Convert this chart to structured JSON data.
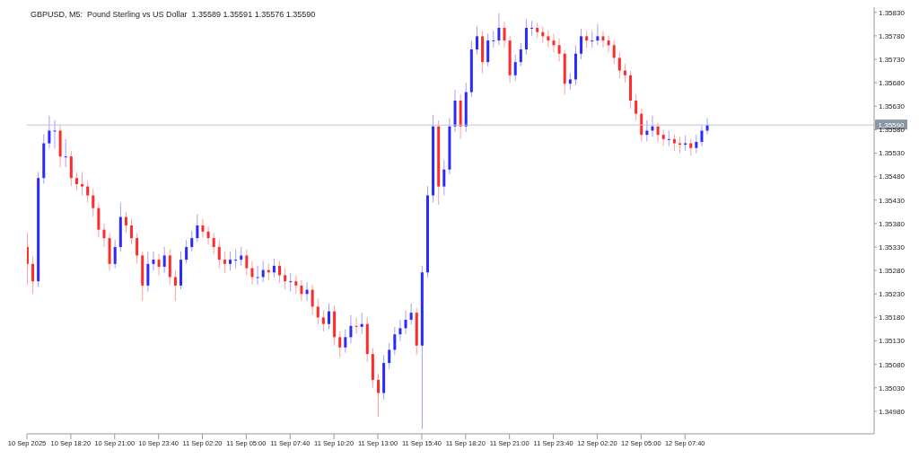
{
  "chart_data": {
    "type": "candlestick",
    "title": "GBPUSD, M5:  Pound Sterling vs US Dollar  1.35589 1.35591 1.35576 1.35590",
    "x": [
      "2025-09-10T15:40",
      "2025-09-10T16:00",
      "2025-09-10T16:20",
      "2025-09-10T16:40",
      "2025-09-10T17:00",
      "2025-09-10T17:20",
      "2025-09-10T17:40",
      "2025-09-10T18:00",
      "2025-09-10T18:20",
      "2025-09-10T18:40",
      "2025-09-10T19:00",
      "2025-09-10T19:20",
      "2025-09-10T19:40",
      "2025-09-10T20:00",
      "2025-09-10T20:20",
      "2025-09-10T20:40",
      "2025-09-10T21:00",
      "2025-09-10T21:20",
      "2025-09-10T21:40",
      "2025-09-10T22:00",
      "2025-09-10T22:20",
      "2025-09-10T22:40",
      "2025-09-10T23:00",
      "2025-09-10T23:20",
      "2025-09-10T23:40",
      "2025-09-11T00:00",
      "2025-09-11T00:20",
      "2025-09-11T00:40",
      "2025-09-11T01:00",
      "2025-09-11T01:20",
      "2025-09-11T01:40",
      "2025-09-11T02:00",
      "2025-09-11T02:20",
      "2025-09-11T02:40",
      "2025-09-11T03:00",
      "2025-09-11T03:20",
      "2025-09-11T03:40",
      "2025-09-11T04:00",
      "2025-09-11T04:20",
      "2025-09-11T04:40",
      "2025-09-11T05:00",
      "2025-09-11T05:20",
      "2025-09-11T05:40",
      "2025-09-11T06:00",
      "2025-09-11T06:20",
      "2025-09-11T06:40",
      "2025-09-11T07:00",
      "2025-09-11T07:20",
      "2025-09-11T07:40",
      "2025-09-11T08:00",
      "2025-09-11T08:20",
      "2025-09-11T08:40",
      "2025-09-11T09:00",
      "2025-09-11T09:20",
      "2025-09-11T09:40",
      "2025-09-11T10:00",
      "2025-09-11T10:20",
      "2025-09-11T10:40",
      "2025-09-11T11:00",
      "2025-09-11T11:20",
      "2025-09-11T11:40",
      "2025-09-11T12:00",
      "2025-09-11T12:20",
      "2025-09-11T12:40",
      "2025-09-11T13:00",
      "2025-09-11T13:20",
      "2025-09-11T13:40",
      "2025-09-11T14:00",
      "2025-09-11T14:20",
      "2025-09-11T14:40",
      "2025-09-11T15:00",
      "2025-09-11T15:20",
      "2025-09-11T15:40",
      "2025-09-11T16:00",
      "2025-09-11T16:20",
      "2025-09-11T16:40",
      "2025-09-11T17:00",
      "2025-09-11T17:20",
      "2025-09-11T17:40",
      "2025-09-11T18:00",
      "2025-09-11T18:20",
      "2025-09-11T18:40",
      "2025-09-11T19:00",
      "2025-09-11T19:20",
      "2025-09-11T19:40",
      "2025-09-11T20:00",
      "2025-09-11T20:20",
      "2025-09-11T20:40",
      "2025-09-11T21:00",
      "2025-09-11T21:20",
      "2025-09-11T21:40",
      "2025-09-11T22:00",
      "2025-09-11T22:20",
      "2025-09-11T22:40",
      "2025-09-11T23:00",
      "2025-09-11T23:20",
      "2025-09-11T23:40",
      "2025-09-12T00:00",
      "2025-09-12T00:20",
      "2025-09-12T00:40",
      "2025-09-12T01:00",
      "2025-09-12T01:20",
      "2025-09-12T01:40",
      "2025-09-12T02:00",
      "2025-09-12T02:20",
      "2025-09-12T02:40",
      "2025-09-12T03:00",
      "2025-09-12T03:20",
      "2025-09-12T03:40",
      "2025-09-12T04:00",
      "2025-09-12T04:20",
      "2025-09-12T04:40",
      "2025-09-12T05:00",
      "2025-09-12T05:20",
      "2025-09-12T05:40",
      "2025-09-12T06:00",
      "2025-09-12T06:20",
      "2025-09-12T06:40",
      "2025-09-12T07:00",
      "2025-09-12T07:20",
      "2025-09-12T07:40",
      "2025-09-12T08:00",
      "2025-09-12T08:20",
      "2025-09-12T08:40",
      "2025-09-12T09:00"
    ],
    "ohlc": [
      [
        1.3533,
        1.3536,
        1.3525,
        1.35294
      ],
      [
        1.35294,
        1.3531,
        1.3523,
        1.35257
      ],
      [
        1.35257,
        1.3549,
        1.35245,
        1.35477
      ],
      [
        1.35477,
        1.3557,
        1.35465,
        1.35551
      ],
      [
        1.35551,
        1.3561,
        1.3554,
        1.35578
      ],
      [
        1.35578,
        1.356,
        1.3554,
        1.35578
      ],
      [
        1.35578,
        1.3559,
        1.355,
        1.35523
      ],
      [
        1.35523,
        1.3556,
        1.355,
        1.35523
      ],
      [
        1.35523,
        1.35535,
        1.3546,
        1.35477
      ],
      [
        1.35477,
        1.3549,
        1.3545,
        1.35464
      ],
      [
        1.35464,
        1.3549,
        1.3544,
        1.35459
      ],
      [
        1.35459,
        1.3547,
        1.35425,
        1.3544
      ],
      [
        1.3544,
        1.35455,
        1.35395,
        1.35413
      ],
      [
        1.35413,
        1.35425,
        1.3535,
        1.35367
      ],
      [
        1.35367,
        1.3538,
        1.3533,
        1.35349
      ],
      [
        1.35349,
        1.3536,
        1.3528,
        1.35294
      ],
      [
        1.35294,
        1.35345,
        1.35285,
        1.3533
      ],
      [
        1.3533,
        1.35425,
        1.3532,
        1.35394
      ],
      [
        1.35394,
        1.35405,
        1.3536,
        1.35376
      ],
      [
        1.35376,
        1.3539,
        1.35335,
        1.35349
      ],
      [
        1.35349,
        1.3536,
        1.35295,
        1.35312
      ],
      [
        1.35312,
        1.3532,
        1.35215,
        1.35248
      ],
      [
        1.35248,
        1.3532,
        1.35235,
        1.35294
      ],
      [
        1.35294,
        1.3532,
        1.3528,
        1.35303
      ],
      [
        1.35303,
        1.35315,
        1.3527,
        1.35288
      ],
      [
        1.35288,
        1.3533,
        1.35275,
        1.35312
      ],
      [
        1.35312,
        1.35325,
        1.3525,
        1.35266
      ],
      [
        1.35266,
        1.3528,
        1.35215,
        1.35248
      ],
      [
        1.35248,
        1.3532,
        1.3524,
        1.35303
      ],
      [
        1.35303,
        1.35345,
        1.35295,
        1.3533
      ],
      [
        1.3533,
        1.35365,
        1.3532,
        1.35349
      ],
      [
        1.35349,
        1.354,
        1.3534,
        1.35376
      ],
      [
        1.35376,
        1.3539,
        1.3535,
        1.35363
      ],
      [
        1.35363,
        1.35375,
        1.35335,
        1.35349
      ],
      [
        1.35349,
        1.3536,
        1.35315,
        1.3533
      ],
      [
        1.3533,
        1.35345,
        1.35285,
        1.35303
      ],
      [
        1.35303,
        1.3532,
        1.35275,
        1.35294
      ],
      [
        1.35294,
        1.3532,
        1.3528,
        1.35303
      ],
      [
        1.35303,
        1.35325,
        1.35285,
        1.35303
      ],
      [
        1.35303,
        1.3533,
        1.3529,
        1.35312
      ],
      [
        1.35312,
        1.35325,
        1.3527,
        1.35285
      ],
      [
        1.35285,
        1.353,
        1.3525,
        1.35266
      ],
      [
        1.35266,
        1.3529,
        1.3525,
        1.35266
      ],
      [
        1.35266,
        1.353,
        1.35255,
        1.35281
      ],
      [
        1.35281,
        1.35295,
        1.3526,
        1.35276
      ],
      [
        1.35276,
        1.35305,
        1.35265,
        1.3529
      ],
      [
        1.3529,
        1.353,
        1.35255,
        1.3527
      ],
      [
        1.3527,
        1.35285,
        1.3524,
        1.35257
      ],
      [
        1.35257,
        1.35275,
        1.35235,
        1.35257
      ],
      [
        1.35257,
        1.3527,
        1.3523,
        1.35248
      ],
      [
        1.35248,
        1.3526,
        1.35215,
        1.3523
      ],
      [
        1.3523,
        1.35255,
        1.35215,
        1.35239
      ],
      [
        1.35239,
        1.3525,
        1.35185,
        1.35203
      ],
      [
        1.35203,
        1.3522,
        1.35165,
        1.3518
      ],
      [
        1.3518,
        1.35195,
        1.3515,
        1.35166
      ],
      [
        1.35166,
        1.3521,
        1.35155,
        1.35193
      ],
      [
        1.35193,
        1.35205,
        1.3512,
        1.35138
      ],
      [
        1.35138,
        1.3515,
        1.35095,
        1.35116
      ],
      [
        1.35116,
        1.35155,
        1.35105,
        1.35138
      ],
      [
        1.35138,
        1.35185,
        1.35125,
        1.35162
      ],
      [
        1.35162,
        1.3518,
        1.35145,
        1.3516
      ],
      [
        1.3516,
        1.3519,
        1.35145,
        1.35166
      ],
      [
        1.35166,
        1.3518,
        1.35085,
        1.35102
      ],
      [
        1.35102,
        1.35115,
        1.3503,
        1.35047
      ],
      [
        1.35047,
        1.3506,
        1.34968,
        1.35019
      ],
      [
        1.35019,
        1.351,
        1.35005,
        1.35083
      ],
      [
        1.35083,
        1.35125,
        1.3507,
        1.35111
      ],
      [
        1.35111,
        1.3516,
        1.351,
        1.35144
      ],
      [
        1.35144,
        1.35175,
        1.3513,
        1.35157
      ],
      [
        1.35157,
        1.35195,
        1.35145,
        1.35175
      ],
      [
        1.35175,
        1.3521,
        1.35165,
        1.3519
      ],
      [
        1.3519,
        1.352,
        1.351,
        1.3512
      ],
      [
        1.3512,
        1.3529,
        1.34942,
        1.35276
      ],
      [
        1.35276,
        1.3546,
        1.35265,
        1.3544
      ],
      [
        1.3544,
        1.35612,
        1.35425,
        1.35587
      ],
      [
        1.35587,
        1.356,
        1.3542,
        1.35459
      ],
      [
        1.35459,
        1.35515,
        1.3544,
        1.35495
      ],
      [
        1.35495,
        1.35605,
        1.35485,
        1.35587
      ],
      [
        1.35587,
        1.35665,
        1.35575,
        1.35642
      ],
      [
        1.35642,
        1.35655,
        1.3556,
        1.35587
      ],
      [
        1.35587,
        1.3568,
        1.35575,
        1.3566
      ],
      [
        1.3566,
        1.3577,
        1.3565,
        1.35751
      ],
      [
        1.35751,
        1.358,
        1.3574,
        1.35779
      ],
      [
        1.35779,
        1.3579,
        1.357,
        1.35724
      ],
      [
        1.35724,
        1.35785,
        1.35715,
        1.3577
      ],
      [
        1.3577,
        1.3579,
        1.35755,
        1.3577
      ],
      [
        1.3577,
        1.35828,
        1.3576,
        1.35797
      ],
      [
        1.35797,
        1.3581,
        1.35755,
        1.3577
      ],
      [
        1.3577,
        1.3578,
        1.3568,
        1.35696
      ],
      [
        1.35696,
        1.3574,
        1.35685,
        1.35724
      ],
      [
        1.35724,
        1.35765,
        1.35715,
        1.35751
      ],
      [
        1.35751,
        1.35815,
        1.3574,
        1.35797
      ],
      [
        1.35797,
        1.35812,
        1.3578,
        1.35797
      ],
      [
        1.35797,
        1.35808,
        1.35775,
        1.35788
      ],
      [
        1.35788,
        1.358,
        1.35765,
        1.35779
      ],
      [
        1.35779,
        1.35792,
        1.35755,
        1.3577
      ],
      [
        1.3577,
        1.35785,
        1.35745,
        1.3576
      ],
      [
        1.3576,
        1.35775,
        1.35725,
        1.35742
      ],
      [
        1.35742,
        1.3575,
        1.35655,
        1.35678
      ],
      [
        1.35678,
        1.357,
        1.35665,
        1.35687
      ],
      [
        1.35687,
        1.3576,
        1.35675,
        1.35742
      ],
      [
        1.35742,
        1.35795,
        1.3573,
        1.35779
      ],
      [
        1.35779,
        1.3579,
        1.35755,
        1.3577
      ],
      [
        1.3577,
        1.3579,
        1.35755,
        1.3577
      ],
      [
        1.3577,
        1.35805,
        1.3576,
        1.35779
      ],
      [
        1.35779,
        1.3579,
        1.35755,
        1.3577
      ],
      [
        1.3577,
        1.3578,
        1.35745,
        1.3576
      ],
      [
        1.3576,
        1.3577,
        1.3572,
        1.35733
      ],
      [
        1.35733,
        1.35745,
        1.3569,
        1.35706
      ],
      [
        1.35706,
        1.3572,
        1.3568,
        1.35696
      ],
      [
        1.35696,
        1.35705,
        1.35625,
        1.35642
      ],
      [
        1.35642,
        1.35655,
        1.356,
        1.35614
      ],
      [
        1.35614,
        1.35625,
        1.35555,
        1.35569
      ],
      [
        1.35569,
        1.356,
        1.35555,
        1.35578
      ],
      [
        1.35578,
        1.3561,
        1.35565,
        1.35587
      ],
      [
        1.35587,
        1.35595,
        1.35555,
        1.35569
      ],
      [
        1.35569,
        1.3558,
        1.35545,
        1.3556
      ],
      [
        1.3556,
        1.35578,
        1.35545,
        1.3556
      ],
      [
        1.3556,
        1.3557,
        1.35535,
        1.35551
      ],
      [
        1.35551,
        1.35565,
        1.3553,
        1.35548
      ],
      [
        1.35548,
        1.35568,
        1.35535,
        1.35551
      ],
      [
        1.35551,
        1.3556,
        1.35525,
        1.35541
      ],
      [
        1.35541,
        1.3557,
        1.3553,
        1.35554
      ],
      [
        1.35554,
        1.3559,
        1.35545,
        1.35578
      ],
      [
        1.35578,
        1.35605,
        1.3557,
        1.3559
      ]
    ],
    "colors": [
      "#ff2a2a",
      "#ff2a2a",
      "#2a2aff",
      "#2a2aff",
      "#2a2aff",
      "#2a2aff",
      "#ff2a2a",
      "#2a2aff",
      "#ff2a2a",
      "#ff2a2a",
      "#ff2a2a",
      "#ff2a2a",
      "#ff2a2a",
      "#ff2a2a",
      "#ff2a2a",
      "#ff2a2a",
      "#2a2aff",
      "#2a2aff",
      "#ff2a2a",
      "#ff2a2a",
      "#ff2a2a",
      "#ff2a2a",
      "#2a2aff",
      "#2a2aff",
      "#ff2a2a",
      "#2a2aff",
      "#ff2a2a",
      "#ff2a2a",
      "#2a2aff",
      "#2a2aff",
      "#2a2aff",
      "#2a2aff",
      "#ff2a2a",
      "#ff2a2a",
      "#ff2a2a",
      "#ff2a2a",
      "#ff2a2a",
      "#2a2aff",
      "#2a2aff",
      "#2a2aff",
      "#ff2a2a",
      "#ff2a2a",
      "#2a2aff",
      "#2a2aff",
      "#ff2a2a",
      "#2a2aff",
      "#ff2a2a",
      "#ff2a2a",
      "#2a2aff",
      "#ff2a2a",
      "#ff2a2a",
      "#2a2aff",
      "#ff2a2a",
      "#ff2a2a",
      "#ff2a2a",
      "#2a2aff",
      "#ff2a2a",
      "#ff2a2a",
      "#2a2aff",
      "#2a2aff",
      "#ff2a2a",
      "#2a2aff",
      "#ff2a2a",
      "#ff2a2a",
      "#ff2a2a",
      "#2a2aff",
      "#2a2aff",
      "#2a2aff",
      "#2a2aff",
      "#2a2aff",
      "#2a2aff",
      "#ff2a2a",
      "#2a2aff",
      "#2a2aff",
      "#2a2aff",
      "#ff2a2a",
      "#2a2aff",
      "#2a2aff",
      "#2a2aff",
      "#ff2a2a",
      "#2a2aff",
      "#2a2aff",
      "#2a2aff",
      "#ff2a2a",
      "#2a2aff",
      "#2a2aff",
      "#2a2aff",
      "#ff2a2a",
      "#ff2a2a",
      "#2a2aff",
      "#2a2aff",
      "#2a2aff",
      "#2a2aff",
      "#ff2a2a",
      "#ff2a2a",
      "#ff2a2a",
      "#ff2a2a",
      "#ff2a2a",
      "#ff2a2a",
      "#2a2aff",
      "#2a2aff",
      "#2a2aff",
      "#ff2a2a",
      "#2a2aff",
      "#2a2aff",
      "#ff2a2a",
      "#ff2a2a",
      "#ff2a2a",
      "#ff2a2a",
      "#ff2a2a",
      "#ff2a2a",
      "#ff2a2a",
      "#ff2a2a",
      "#2a2aff",
      "#2a2aff",
      "#ff2a2a",
      "#ff2a2a",
      "#2a2aff",
      "#ff2a2a",
      "#ff2a2a",
      "#2a2aff",
      "#ff2a2a",
      "#2a2aff",
      "#2a2aff",
      "#2a2aff"
    ],
    "xlim": [
      "2025-09-10T15:40",
      "2025-09-12T19:10"
    ],
    "xticks": [
      {
        "value": "2025-09-10T15:40",
        "label": "10 Sep 2025"
      },
      {
        "value": "2025-09-10T18:20",
        "label": "10 Sep 18:20"
      },
      {
        "value": "2025-09-10T21:00",
        "label": "10 Sep 21:00"
      },
      {
        "value": "2025-09-10T23:40",
        "label": "10 Sep 23:40"
      },
      {
        "value": "2025-09-11T02:20",
        "label": "11 Sep 02:20"
      },
      {
        "value": "2025-09-11T05:00",
        "label": "11 Sep 05:00"
      },
      {
        "value": "2025-09-11T07:40",
        "label": "11 Sep 07:40"
      },
      {
        "value": "2025-09-11T10:20",
        "label": "11 Sep 10:20"
      },
      {
        "value": "2025-09-11T13:00",
        "label": "11 Sep 13:00"
      },
      {
        "value": "2025-09-11T15:40",
        "label": "11 Sep 15:40"
      },
      {
        "value": "2025-09-11T18:20",
        "label": "11 Sep 18:20"
      },
      {
        "value": "2025-09-11T21:00",
        "label": "11 Sep 21:00"
      },
      {
        "value": "2025-09-11T23:40",
        "label": "11 Sep 23:40"
      },
      {
        "value": "2025-09-12T02:20",
        "label": "12 Sep 02:20"
      },
      {
        "value": "2025-09-12T05:00",
        "label": "12 Sep 05:00"
      },
      {
        "value": "2025-09-12T07:40",
        "label": "12 Sep 07:40"
      }
    ],
    "ylim": [
      1.34932,
      1.35841
    ],
    "yticks": [
      {
        "value": 1.3498,
        "label": "1.34980"
      },
      {
        "value": 1.3503,
        "label": "1.35030"
      },
      {
        "value": 1.3508,
        "label": "1.35080"
      },
      {
        "value": 1.3513,
        "label": "1.35130"
      },
      {
        "value": 1.3518,
        "label": "1.35180"
      },
      {
        "value": 1.3523,
        "label": "1.35230"
      },
      {
        "value": 1.3528,
        "label": "1.35280"
      },
      {
        "value": 1.3533,
        "label": "1.35330"
      },
      {
        "value": 1.3538,
        "label": "1.35380"
      },
      {
        "value": 1.3543,
        "label": "1.35430"
      },
      {
        "value": 1.3548,
        "label": "1.35480"
      },
      {
        "value": 1.3553,
        "label": "1.35530"
      },
      {
        "value": 1.3558,
        "label": "1.35580"
      },
      {
        "value": 1.3563,
        "label": "1.35630"
      },
      {
        "value": 1.3568,
        "label": "1.35680"
      },
      {
        "value": 1.3573,
        "label": "1.35730"
      },
      {
        "value": 1.3578,
        "label": "1.35780"
      },
      {
        "value": 1.3583,
        "label": "1.35830"
      }
    ],
    "ref_lines": [
      {
        "axis": "y",
        "value": 1.3559,
        "label": "1.35590",
        "color": "#c0c4cc"
      }
    ]
  }
}
